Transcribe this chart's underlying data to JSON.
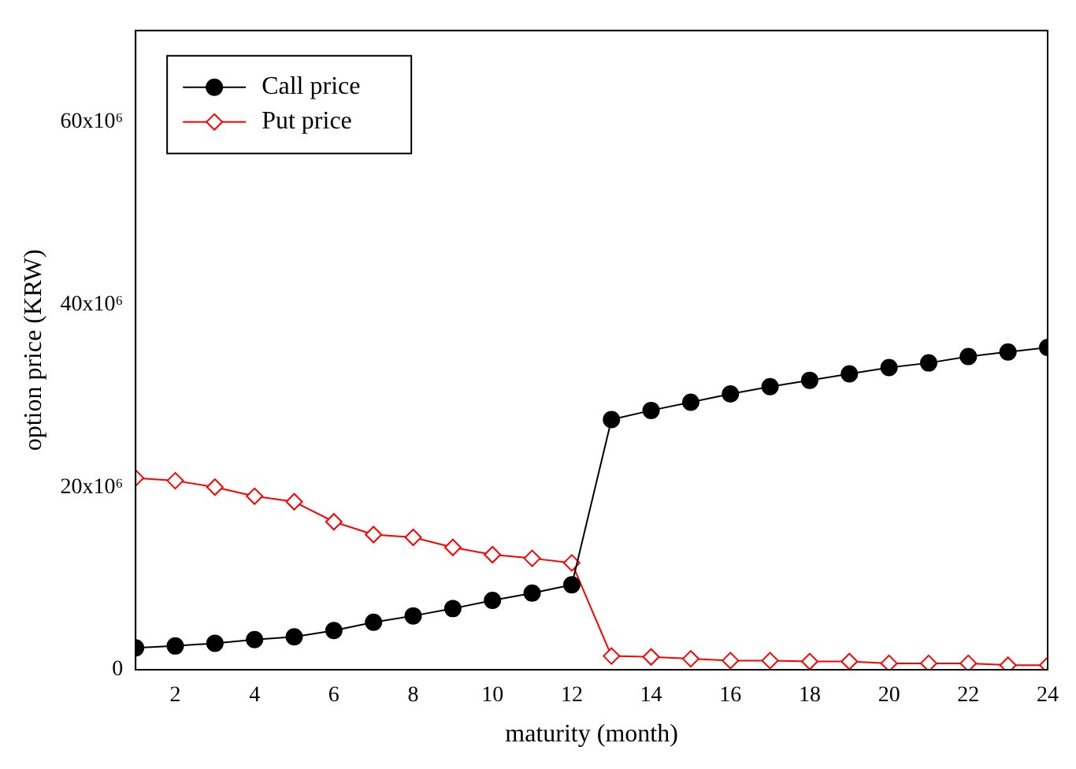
{
  "chart_data": {
    "type": "line",
    "xlabel": "maturity (month)",
    "ylabel": "option price (KRW)",
    "x": [
      1,
      2,
      3,
      4,
      5,
      6,
      7,
      8,
      9,
      10,
      11,
      12,
      13,
      14,
      15,
      16,
      17,
      18,
      19,
      20,
      21,
      22,
      23,
      24
    ],
    "xlim": [
      1,
      24
    ],
    "xticks": [
      2,
      4,
      6,
      8,
      10,
      12,
      14,
      16,
      18,
      20,
      22,
      24
    ],
    "ylim": [
      0,
      70000000
    ],
    "yticks": [
      0,
      {
        "value": 20000000,
        "label": "20x10⁶"
      },
      {
        "value": 40000000,
        "label": "40x10⁶"
      },
      {
        "value": 60000000,
        "label": "60x10⁶"
      }
    ],
    "legend": "top left",
    "grid": false,
    "line_style": "solid",
    "series": [
      {
        "name": "Call price",
        "color": "#000000",
        "marker": "circle",
        "values": [
          2400000,
          2600000,
          2900000,
          3300000,
          3600000,
          4300000,
          5200000,
          5900000,
          6700000,
          7600000,
          8400000,
          9300000,
          27400000,
          28400000,
          29300000,
          30200000,
          31000000,
          31700000,
          32400000,
          33100000,
          33600000,
          34300000,
          34800000,
          35300000
        ]
      },
      {
        "name": "Put price",
        "color": "#ff0000",
        "marker": "diamond",
        "values": [
          21000000,
          20700000,
          20000000,
          19000000,
          18400000,
          16200000,
          14800000,
          14500000,
          13400000,
          12600000,
          12200000,
          11700000,
          1500000,
          1400000,
          1200000,
          1000000,
          1000000,
          900000,
          900000,
          700000,
          700000,
          700000,
          500000,
          500000
        ]
      }
    ]
  }
}
